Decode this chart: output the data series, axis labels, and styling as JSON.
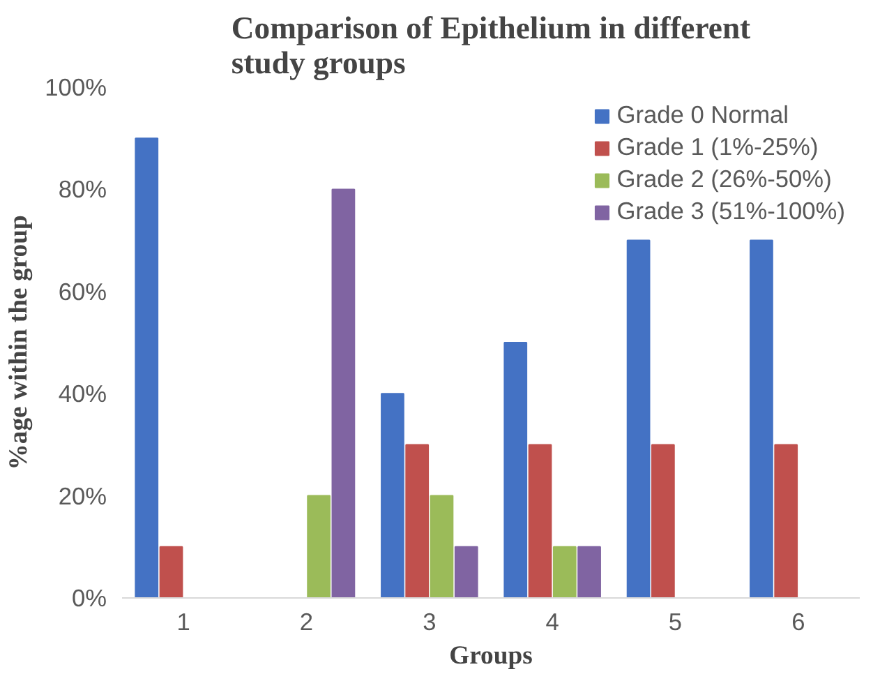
{
  "chart_data": {
    "type": "bar",
    "title": "Comparison of Epithelium in different\nstudy groups",
    "xlabel": "Groups",
    "ylabel": "%age within the group",
    "categories": [
      "1",
      "2",
      "3",
      "4",
      "5",
      "6"
    ],
    "series": [
      {
        "name": "Grade 0 Normal",
        "color": "#4472c4",
        "values": [
          90,
          0,
          40,
          50,
          70,
          70
        ]
      },
      {
        "name": "Grade 1 (1%-25%)",
        "color": "#c0504d",
        "values": [
          10,
          0,
          30,
          30,
          30,
          30
        ]
      },
      {
        "name": "Grade 2 (26%-50%)",
        "color": "#9bbb59",
        "values": [
          0,
          20,
          20,
          10,
          0,
          0
        ]
      },
      {
        "name": "Grade 3 (51%-100%)",
        "color": "#8064a2",
        "values": [
          0,
          80,
          10,
          10,
          0,
          0
        ]
      }
    ],
    "ylim": [
      0,
      100
    ],
    "yticks": [
      {
        "value": 0,
        "label": "0%"
      },
      {
        "value": 20,
        "label": "20%"
      },
      {
        "value": 40,
        "label": "40%"
      },
      {
        "value": 60,
        "label": "60%"
      },
      {
        "value": 80,
        "label": "80%"
      },
      {
        "value": 100,
        "label": "100%"
      }
    ],
    "grid": false,
    "legend": "top right"
  }
}
